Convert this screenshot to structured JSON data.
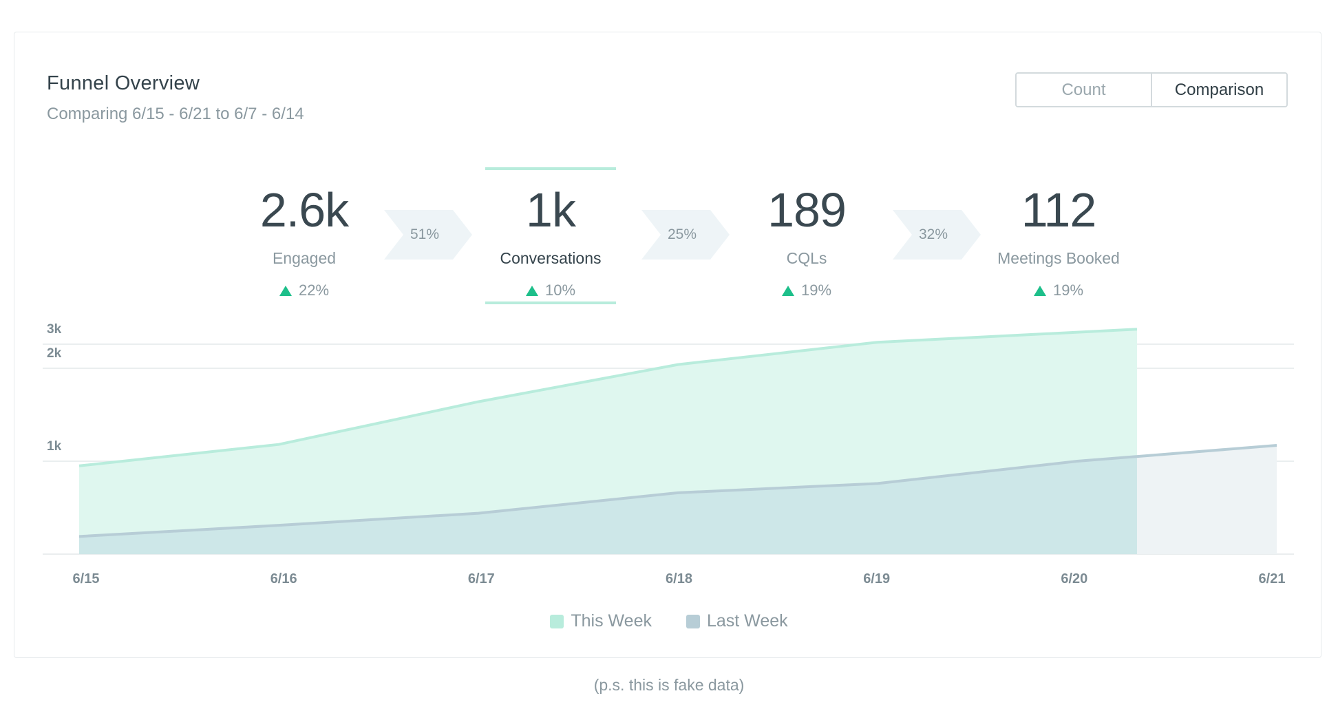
{
  "header": {
    "title": "Funnel Overview",
    "subtitle": "Comparing 6/15 - 6/21 to 6/7 - 6/14"
  },
  "toggle": {
    "count_label": "Count",
    "comparison_label": "Comparison",
    "selected": "Comparison"
  },
  "funnel": {
    "stages": [
      {
        "value": "2.6k",
        "label": "Engaged",
        "change": "22%",
        "direction": "up",
        "active": false
      },
      {
        "value": "1k",
        "label": "Conversations",
        "change": "10%",
        "direction": "up",
        "active": true
      },
      {
        "value": "189",
        "label": "CQLs",
        "change": "19%",
        "direction": "up",
        "active": false
      },
      {
        "value": "112",
        "label": "Meetings Booked",
        "change": "19%",
        "direction": "up",
        "active": false
      }
    ],
    "conversions": [
      "51%",
      "25%",
      "32%"
    ]
  },
  "colors": {
    "this_week_fill": "#dff7ef",
    "this_week_line": "#b8ecdc",
    "last_week_fill": "#cde7e8",
    "last_week_line": "#b7cdd6",
    "last_week_only_fill": "#eef3f5",
    "up_arrow": "#1dbf8a"
  },
  "chart_data": {
    "type": "area",
    "x": [
      "6/15",
      "6/16",
      "6/17",
      "6/18",
      "6/19",
      "6/20",
      "6/21"
    ],
    "y_ticks": [
      "1k",
      "2k",
      "3k"
    ],
    "ylim": [
      0,
      3000
    ],
    "grid": true,
    "legend_position": "bottom-center",
    "series": [
      {
        "name": "This Week",
        "x": [
          0,
          1,
          2,
          3,
          4,
          5.3
        ],
        "values": [
          950,
          1180,
          1640,
          2040,
          2280,
          2420
        ]
      },
      {
        "name": "Last Week",
        "x": [
          0,
          1,
          2,
          3,
          4,
          5,
          6
        ],
        "values": [
          190,
          310,
          440,
          660,
          760,
          1000,
          1170
        ]
      }
    ]
  },
  "legend": {
    "this_week": "This Week",
    "last_week": "Last Week"
  },
  "footnote": "(p.s. this is fake data)"
}
